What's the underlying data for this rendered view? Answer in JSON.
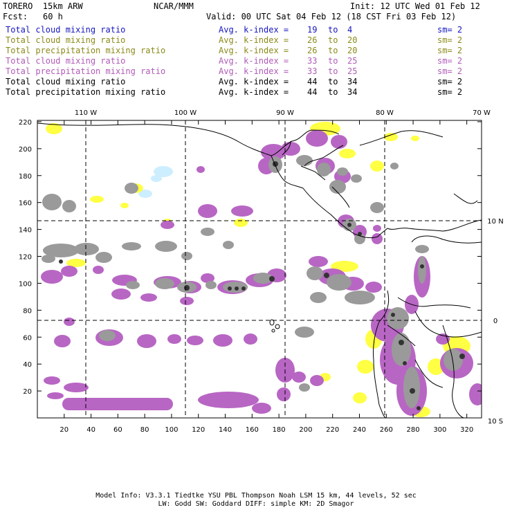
{
  "header": {
    "model": "TORERO  15km ARW",
    "org": "NCAR/MMM",
    "init": "Init: 12 UTC Wed 01 Feb 12",
    "fcst_label": "Fcst:",
    "fcst_value": "60 h",
    "valid": "Valid: 00 UTC Sat 04 Feb 12 (18 CST Fri 03 Feb 12)"
  },
  "legend": [
    {
      "name": "Total cloud mixing ratio",
      "kidx": "Avg. k-index =",
      "k1": "19",
      "to": "to",
      "k2": "4",
      "sm": "sm= 2",
      "color": "#1515c0"
    },
    {
      "name": "Total cloud mixing ratio",
      "kidx": "Avg. k-index =",
      "k1": "26",
      "to": "to",
      "k2": "20",
      "sm": "sm= 2",
      "color": "#8a8a18"
    },
    {
      "name": "Total precipitation mixing ratio",
      "kidx": "Avg. k-index =",
      "k1": "26",
      "to": "to",
      "k2": "20",
      "sm": "sm= 2",
      "color": "#8a8a18"
    },
    {
      "name": "Total cloud mixing ratio",
      "kidx": "Avg. k-index =",
      "k1": "33",
      "to": "to",
      "k2": "25",
      "sm": "sm= 2",
      "color": "#b05ab8"
    },
    {
      "name": "Total precipitation mixing ratio",
      "kidx": "Avg. k-index =",
      "k1": "33",
      "to": "to",
      "k2": "25",
      "sm": "sm= 2",
      "color": "#b05ab8"
    },
    {
      "name": "Total cloud mixing ratio",
      "kidx": "Avg. k-index =",
      "k1": "44",
      "to": "to",
      "k2": "34",
      "sm": "sm= 2",
      "color": "#000000"
    },
    {
      "name": "Total precipitation mixing ratio",
      "kidx": "Avg. k-index =",
      "k1": "44",
      "to": "to",
      "k2": "34",
      "sm": "sm= 2",
      "color": "#000000"
    }
  ],
  "map": {
    "top_labels": [
      "110 W",
      "100 W",
      "90 W",
      "80 W",
      "70 W"
    ],
    "right_labels": [
      "10 N",
      "0",
      "10 S"
    ],
    "y_ticks": [
      "20",
      "40",
      "60",
      "80",
      "100",
      "120",
      "140",
      "160",
      "180",
      "200",
      "220"
    ],
    "x_ticks": [
      "20",
      "40",
      "60",
      "80",
      "100",
      "120",
      "140",
      "160",
      "180",
      "200",
      "220",
      "240",
      "260",
      "280",
      "300",
      "320"
    ],
    "colors": {
      "blue_sky": "#cdeeff",
      "yellow": "#ffff44",
      "mauve": "#b866c4",
      "gray": "#9a9a9a",
      "dark": "#333333"
    }
  },
  "footer": {
    "line1": "Model Info: V3.3.1   Tiedtke YSU PBL  Thompson    Noah LSM  15 km,   44 levels,   52 sec",
    "line2": "LW: Godd SW: Goddard DIFF: simple KM: 2D Smagor"
  }
}
